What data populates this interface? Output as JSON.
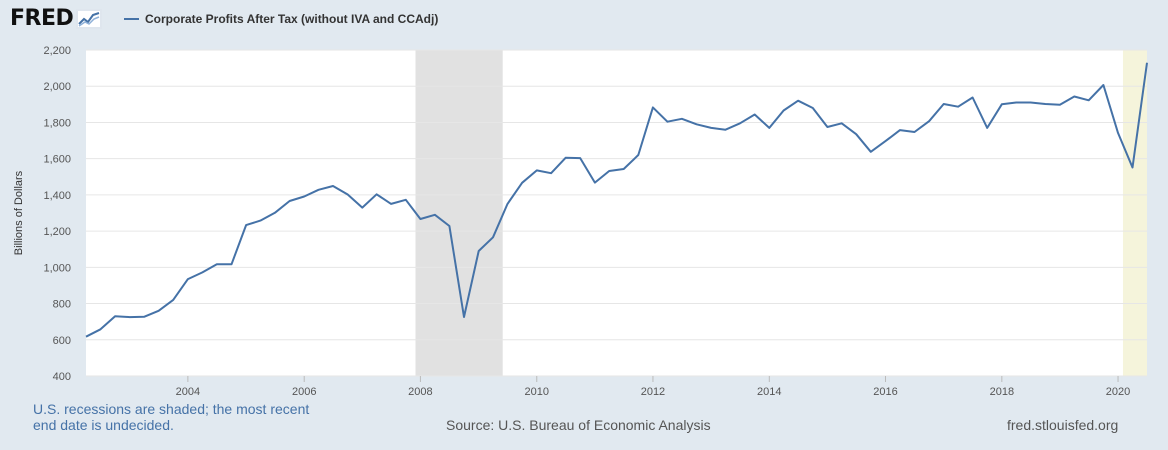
{
  "brand": {
    "logo_text": "FRED"
  },
  "footer": {
    "note": "U.S. recessions are shaded; the most recent end date is undecided.",
    "source": "Source: U.S. Bureau of Economic Analysis",
    "url": "fred.stlouisfed.org"
  },
  "colors": {
    "line": "#4572a7",
    "recession": "#e1e1e1",
    "recent_recession": "#f5f4db",
    "grid": "#e6e6e6",
    "background": "#e1e9f0"
  },
  "chart_data": {
    "type": "line",
    "title": "",
    "xlabel": "",
    "ylabel": "Billions of Dollars",
    "ylim": [
      400,
      2200
    ],
    "xlim": [
      "2002-04-01",
      "2020-07-01"
    ],
    "yticks": [
      400,
      600,
      800,
      1000,
      1200,
      1400,
      1600,
      1800,
      2000,
      2200
    ],
    "ytick_labels": [
      "400",
      "600",
      "800",
      "1,000",
      "1,200",
      "1,400",
      "1,600",
      "1,800",
      "2,000",
      "2,200"
    ],
    "xticks": [
      "2004-01-01",
      "2006-01-01",
      "2008-01-01",
      "2010-01-01",
      "2012-01-01",
      "2014-01-01",
      "2016-01-01",
      "2018-01-01",
      "2020-01-01"
    ],
    "xtick_labels": [
      "2004",
      "2006",
      "2008",
      "2010",
      "2012",
      "2014",
      "2016",
      "2018",
      "2020"
    ],
    "grid": true,
    "legend_position": "top-left",
    "recessions": [
      {
        "start": "2007-12-01",
        "end": "2009-06-01"
      },
      {
        "start": "2020-02-01",
        "end": "2020-07-01",
        "undecided": true
      }
    ],
    "series": [
      {
        "name": "Corporate Profits After Tax (without IVA and CCAdj)",
        "color": "#4572a7",
        "x": [
          "2002-04-01",
          "2002-07-01",
          "2002-10-01",
          "2003-01-01",
          "2003-04-01",
          "2003-07-01",
          "2003-10-01",
          "2004-01-01",
          "2004-04-01",
          "2004-07-01",
          "2004-10-01",
          "2005-01-01",
          "2005-04-01",
          "2005-07-01",
          "2005-10-01",
          "2006-01-01",
          "2006-04-01",
          "2006-07-01",
          "2006-10-01",
          "2007-01-01",
          "2007-04-01",
          "2007-07-01",
          "2007-10-01",
          "2008-01-01",
          "2008-04-01",
          "2008-07-01",
          "2008-10-01",
          "2009-01-01",
          "2009-04-01",
          "2009-07-01",
          "2009-10-01",
          "2010-01-01",
          "2010-04-01",
          "2010-07-01",
          "2010-10-01",
          "2011-01-01",
          "2011-04-01",
          "2011-07-01",
          "2011-10-01",
          "2012-01-01",
          "2012-04-01",
          "2012-07-01",
          "2012-10-01",
          "2013-01-01",
          "2013-04-01",
          "2013-07-01",
          "2013-10-01",
          "2014-01-01",
          "2014-04-01",
          "2014-07-01",
          "2014-10-01",
          "2015-01-01",
          "2015-04-01",
          "2015-07-01",
          "2015-10-01",
          "2016-01-01",
          "2016-04-01",
          "2016-07-01",
          "2016-10-01",
          "2017-01-01",
          "2017-04-01",
          "2017-07-01",
          "2017-10-01",
          "2018-01-01",
          "2018-04-01",
          "2018-07-01",
          "2018-10-01",
          "2019-01-01",
          "2019-04-01",
          "2019-07-01",
          "2019-10-01",
          "2020-01-01",
          "2020-04-01",
          "2020-07-01"
        ],
        "values": [
          617,
          658,
          730,
          725,
          727,
          760,
          820,
          935,
          972,
          1017,
          1017,
          1233,
          1258,
          1301,
          1366,
          1391,
          1428,
          1449,
          1402,
          1330,
          1403,
          1350,
          1373,
          1267,
          1290,
          1228,
          726,
          1090,
          1166,
          1350,
          1467,
          1535,
          1520,
          1605,
          1603,
          1468,
          1532,
          1543,
          1620,
          1883,
          1804,
          1820,
          1790,
          1770,
          1760,
          1795,
          1844,
          1770,
          1866,
          1920,
          1880,
          1775,
          1795,
          1735,
          1638,
          1697,
          1758,
          1747,
          1807,
          1902,
          1887,
          1938,
          1770,
          1900,
          1910,
          1910,
          1902,
          1898,
          1943,
          1922,
          2007,
          1742,
          1551,
          2130
        ]
      }
    ]
  }
}
